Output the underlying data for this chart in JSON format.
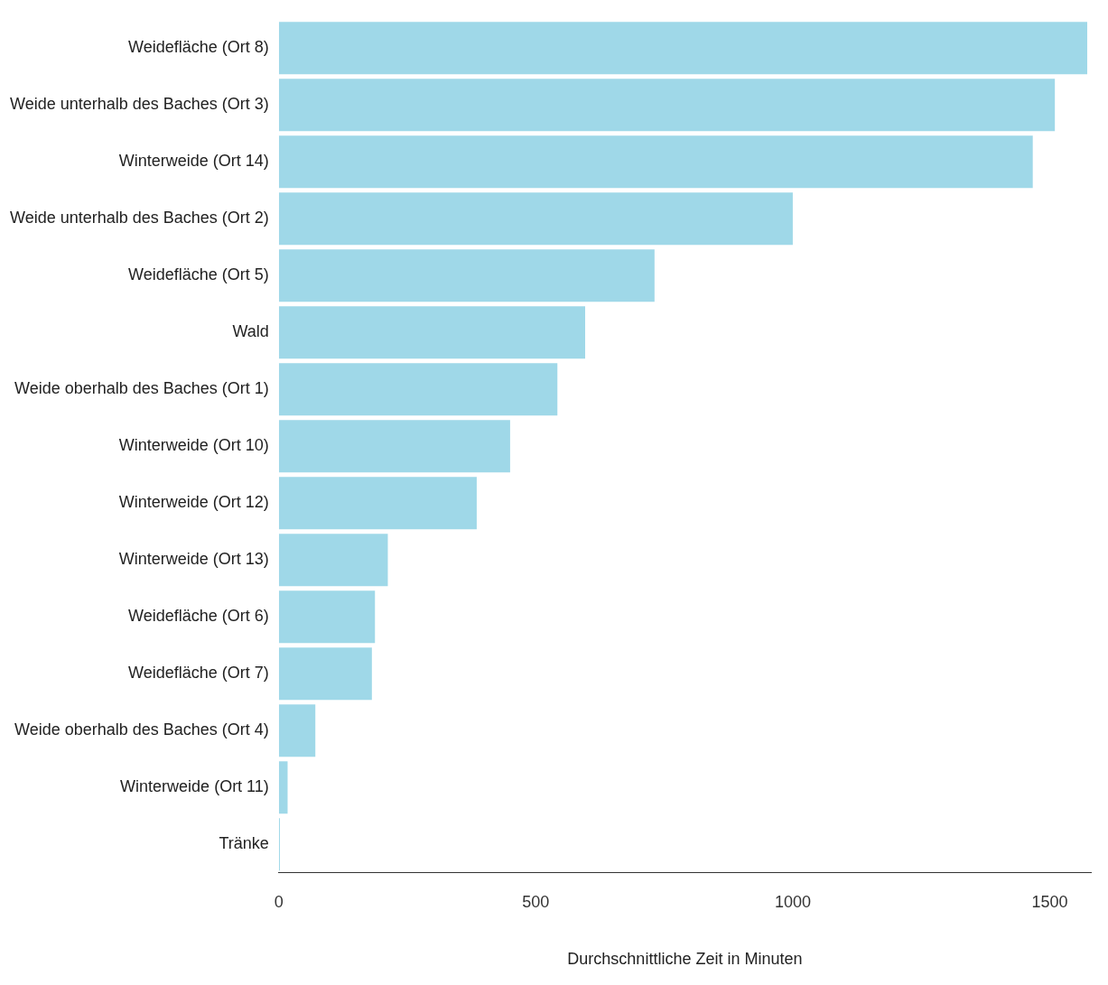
{
  "chart_data": {
    "type": "bar",
    "orientation": "horizontal",
    "xlabel": "Durchschnittliche Zeit in Minuten",
    "categories": [
      "Weidefläche (Ort 8)",
      "Weide unterhalb des Baches (Ort 3)",
      "Winterweide (Ort 14)",
      "Weide unterhalb des Baches (Ort 2)",
      "Weidefläche (Ort 5)",
      "Wald",
      "Weide oberhalb des Baches (Ort 1)",
      "Winterweide (Ort 10)",
      "Winterweide (Ort 12)",
      "Winterweide (Ort 13)",
      "Weidefläche (Ort 6)",
      "Weidefläche (Ort 7)",
      "Weide oberhalb des Baches (Ort 4)",
      "Winterweide (Ort 11)",
      "Tränke"
    ],
    "values": [
      1573,
      1510,
      1467,
      1000,
      731,
      596,
      542,
      450,
      385,
      212,
      187,
      181,
      71,
      17,
      2
    ],
    "color": "#9fd8e8",
    "xlim": [
      0,
      1580
    ],
    "xticks": [
      0,
      500,
      1000,
      1500
    ],
    "grid": false,
    "legend": false
  }
}
